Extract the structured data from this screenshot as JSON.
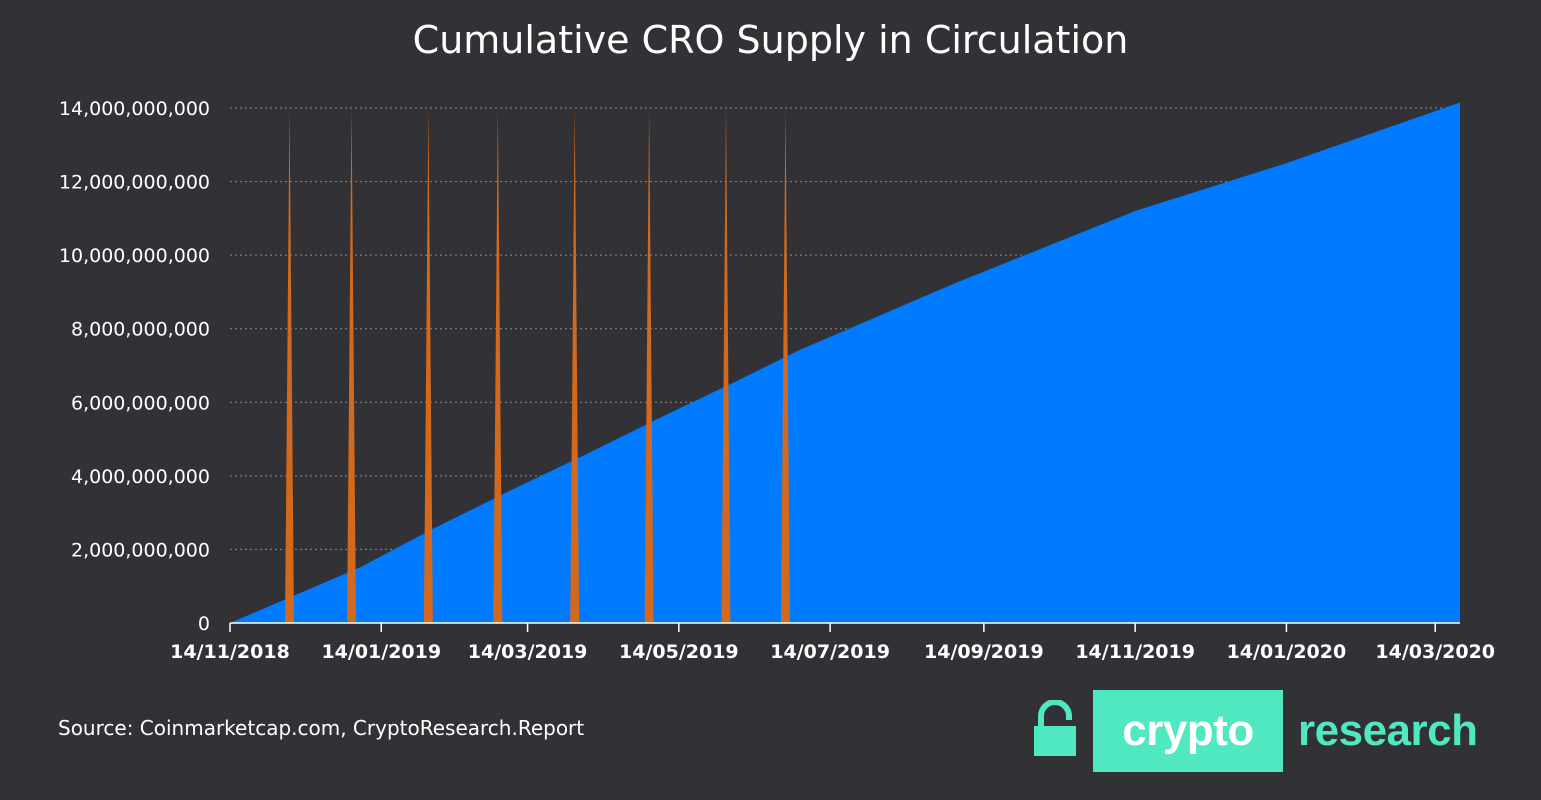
{
  "title": "Cumulative CRO Supply in Circulation",
  "source": "Source: Coinmarketcap.com, CryptoResearch.Report",
  "logo": {
    "box_text": "crypto",
    "side_text": "research",
    "icon": "lock-icon"
  },
  "colors": {
    "background": "#323236",
    "area": "#007aff",
    "spikes": "#d2691e",
    "brand": "#50e8c0"
  },
  "chart_data": {
    "type": "area",
    "title": "Cumulative CRO Supply in Circulation",
    "xlabel": "",
    "ylabel": "",
    "x_tick_labels": [
      "14/11/2018",
      "14/01/2019",
      "14/03/2019",
      "14/05/2019",
      "14/07/2019",
      "14/09/2019",
      "14/11/2019",
      "14/01/2020",
      "14/03/2020"
    ],
    "y_tick_labels": [
      "0",
      "2,000,000,000",
      "4,000,000,000",
      "6,000,000,000",
      "8,000,000,000",
      "10,000,000,000",
      "12,000,000,000",
      "14,000,000,000"
    ],
    "ylim": [
      0,
      14000000000
    ],
    "xlim": [
      "14/11/2018",
      "24/03/2020"
    ],
    "grid": true,
    "series": [
      {
        "type": "area",
        "x": [
          "14/11/2018",
          "10/12/2018",
          "05/01/2019",
          "05/02/2019",
          "07/03/2019",
          "07/04/2019",
          "07/05/2019",
          "07/06/2019",
          "01/07/2019",
          "01/09/2019",
          "14/11/2019",
          "14/01/2020",
          "24/03/2020"
        ],
        "values": [
          0,
          750000000,
          1500000000,
          2600000000,
          3600000000,
          4600000000,
          5600000000,
          6600000000,
          7400000000,
          9200000000,
          11200000000,
          12500000000,
          14150000000
        ]
      },
      {
        "type": "spikes",
        "x": [
          "08/12/2018",
          "02/01/2019",
          "02/02/2019",
          "02/03/2019",
          "02/04/2019",
          "02/05/2019",
          "02/06/2019",
          "26/06/2019"
        ],
        "values": [
          14000000000,
          14000000000,
          14000000000,
          14000000000,
          14000000000,
          14000000000,
          14000000000,
          14000000000
        ]
      }
    ]
  }
}
